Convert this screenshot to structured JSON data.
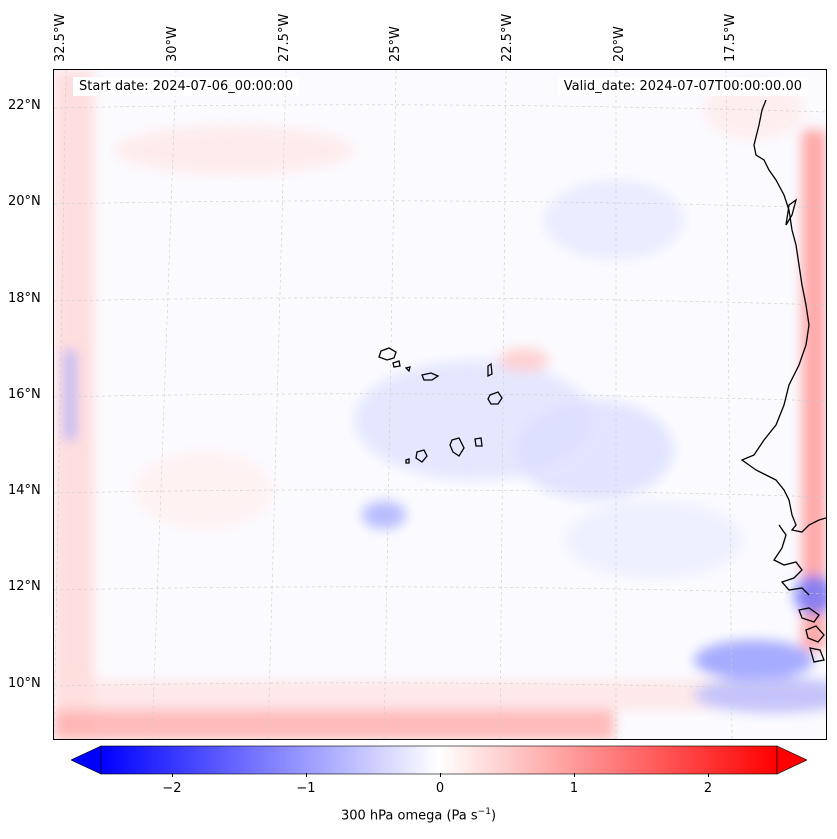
{
  "map": {
    "title_left": "Start date: 2024-07-06_00:00:00",
    "title_right": "Valid_date: 2024-07-07T00:00:00.00",
    "lon_labels": [
      "32.5°W",
      "30°W",
      "27.5°W",
      "25°W",
      "22.5°W",
      "20°W",
      "17.5°W"
    ],
    "lat_labels": [
      "22°N",
      "20°N",
      "18°N",
      "16°N",
      "14°N",
      "12°N",
      "10°N"
    ],
    "variable": "300 hPa omega",
    "extent_lon": [
      -33,
      -15
    ],
    "extent_lat": [
      8.8,
      22.8
    ]
  },
  "colorbar": {
    "label_main": "300 hPa omega (Pa s",
    "label_sup": "−1",
    "label_end": ")",
    "ticks": [
      "−2",
      "−1",
      "0",
      "1",
      "2"
    ],
    "range": [
      -2.6,
      2.6
    ],
    "colormap": "bwr",
    "color_min": "#0000ff",
    "color_mid": "#ffffff",
    "color_max": "#ff0000",
    "extend": "both"
  }
}
